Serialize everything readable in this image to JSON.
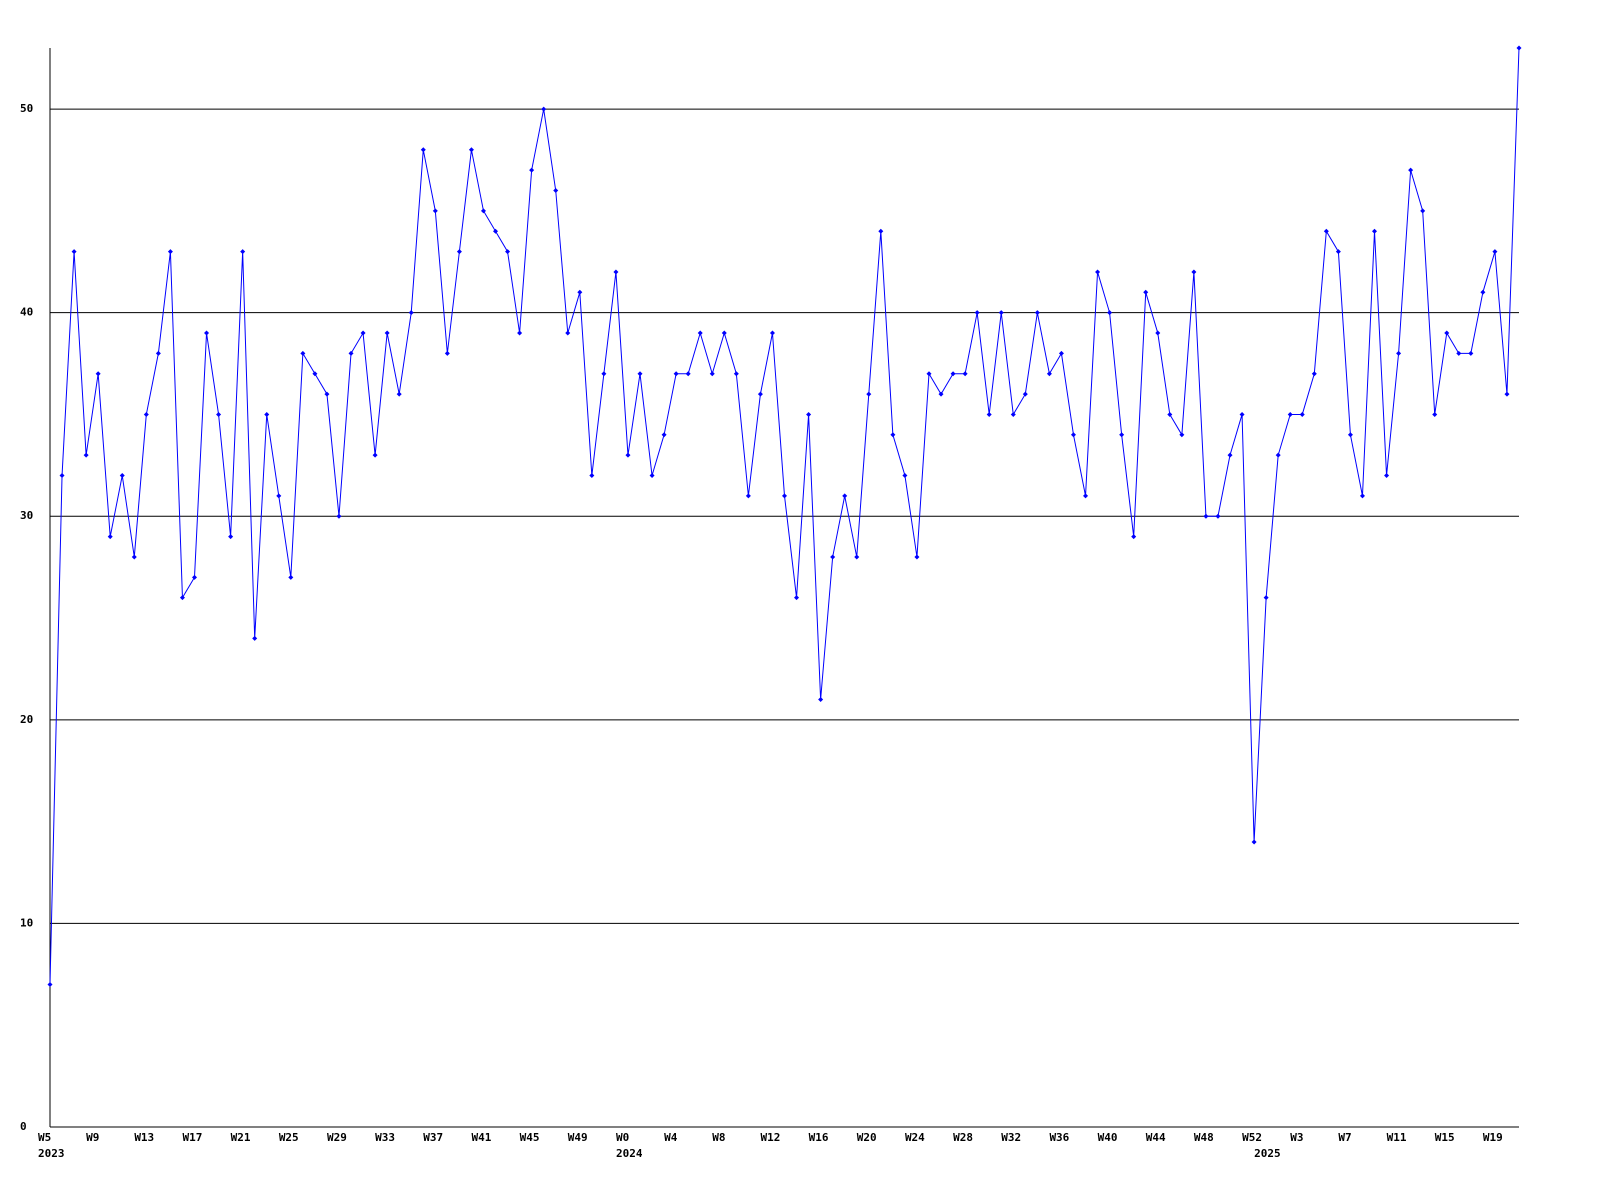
{
  "chart_data": {
    "type": "line",
    "categories": [
      "W5",
      null,
      null,
      null,
      "W9",
      null,
      null,
      null,
      "W13",
      null,
      null,
      null,
      "W17",
      null,
      null,
      null,
      "W21",
      null,
      null,
      null,
      "W25",
      null,
      null,
      null,
      "W29",
      null,
      null,
      null,
      "W33",
      null,
      null,
      null,
      "W37",
      null,
      null,
      null,
      "W41",
      null,
      null,
      null,
      "W45",
      null,
      null,
      null,
      "W49",
      null,
      null,
      null,
      "W0",
      null,
      null,
      null,
      "W4",
      null,
      null,
      null,
      "W8",
      null,
      null,
      null,
      "W12",
      null,
      null,
      null,
      "W16",
      null,
      null,
      null,
      "W20",
      null,
      null,
      null,
      "W24",
      null,
      null,
      null,
      "W28",
      null,
      null,
      null,
      "W32",
      null,
      null,
      null,
      "W36",
      null,
      null,
      null,
      "W40",
      null,
      null,
      null,
      "W44",
      null,
      null,
      null,
      "W48",
      null,
      null,
      null,
      "W52",
      null,
      null,
      null,
      "W3",
      null,
      null,
      null,
      "W7",
      null,
      null,
      null,
      "W11",
      null,
      null,
      null,
      "W15",
      null,
      null,
      null,
      "W19",
      null,
      null
    ],
    "years": [
      "2023",
      null,
      null,
      null,
      null,
      null,
      null,
      null,
      null,
      null,
      null,
      null,
      null,
      null,
      null,
      null,
      null,
      null,
      null,
      null,
      null,
      null,
      null,
      null,
      null,
      null,
      null,
      null,
      null,
      null,
      null,
      null,
      null,
      null,
      null,
      null,
      null,
      null,
      null,
      null,
      null,
      null,
      null,
      null,
      null,
      null,
      null,
      null,
      "2024",
      null,
      null,
      null,
      null,
      null,
      null,
      null,
      null,
      null,
      null,
      null,
      null,
      null,
      null,
      null,
      null,
      null,
      null,
      null,
      null,
      null,
      null,
      null,
      null,
      null,
      null,
      null,
      null,
      null,
      null,
      null,
      null,
      null,
      null,
      null,
      null,
      null,
      null,
      null,
      null,
      null,
      null,
      null,
      null,
      null,
      null,
      null,
      null,
      null,
      null,
      null,
      null,
      "2025",
      null,
      null,
      null,
      null,
      null,
      null,
      null,
      null,
      null,
      null,
      null,
      null,
      null,
      null,
      null,
      null,
      null,
      null,
      null,
      null,
      null
    ],
    "series": [
      {
        "color": "#0000ff",
        "values": [
          7,
          32,
          43,
          33,
          37,
          29,
          32,
          28,
          35,
          38,
          43,
          26,
          27,
          39,
          35,
          29,
          43,
          24,
          35,
          31,
          27,
          38,
          37,
          36,
          30,
          38,
          39,
          33,
          39,
          36,
          40,
          48,
          45,
          38,
          43,
          48,
          45,
          44,
          43,
          39,
          47,
          50,
          46,
          39,
          41,
          32,
          37,
          42,
          33,
          37,
          32,
          34,
          37,
          37,
          39,
          37,
          39,
          37,
          31,
          36,
          39,
          31,
          26,
          35,
          21,
          28,
          31,
          28,
          36,
          44,
          34,
          32,
          28,
          37,
          36,
          37,
          37,
          40,
          35,
          40,
          35,
          36,
          40,
          37,
          38,
          34,
          31,
          42,
          40,
          34,
          29,
          41,
          39,
          35,
          34,
          42,
          30,
          30,
          33,
          35,
          14,
          26,
          33,
          35,
          35,
          37,
          44,
          43,
          34,
          31,
          44,
          32,
          38,
          47,
          45,
          35,
          39,
          38,
          38,
          41,
          43,
          36,
          53
        ]
      }
    ],
    "ylim": [
      0,
      53
    ],
    "yticks": [
      0,
      10,
      20,
      30,
      40,
      50
    ],
    "grid": true
  }
}
